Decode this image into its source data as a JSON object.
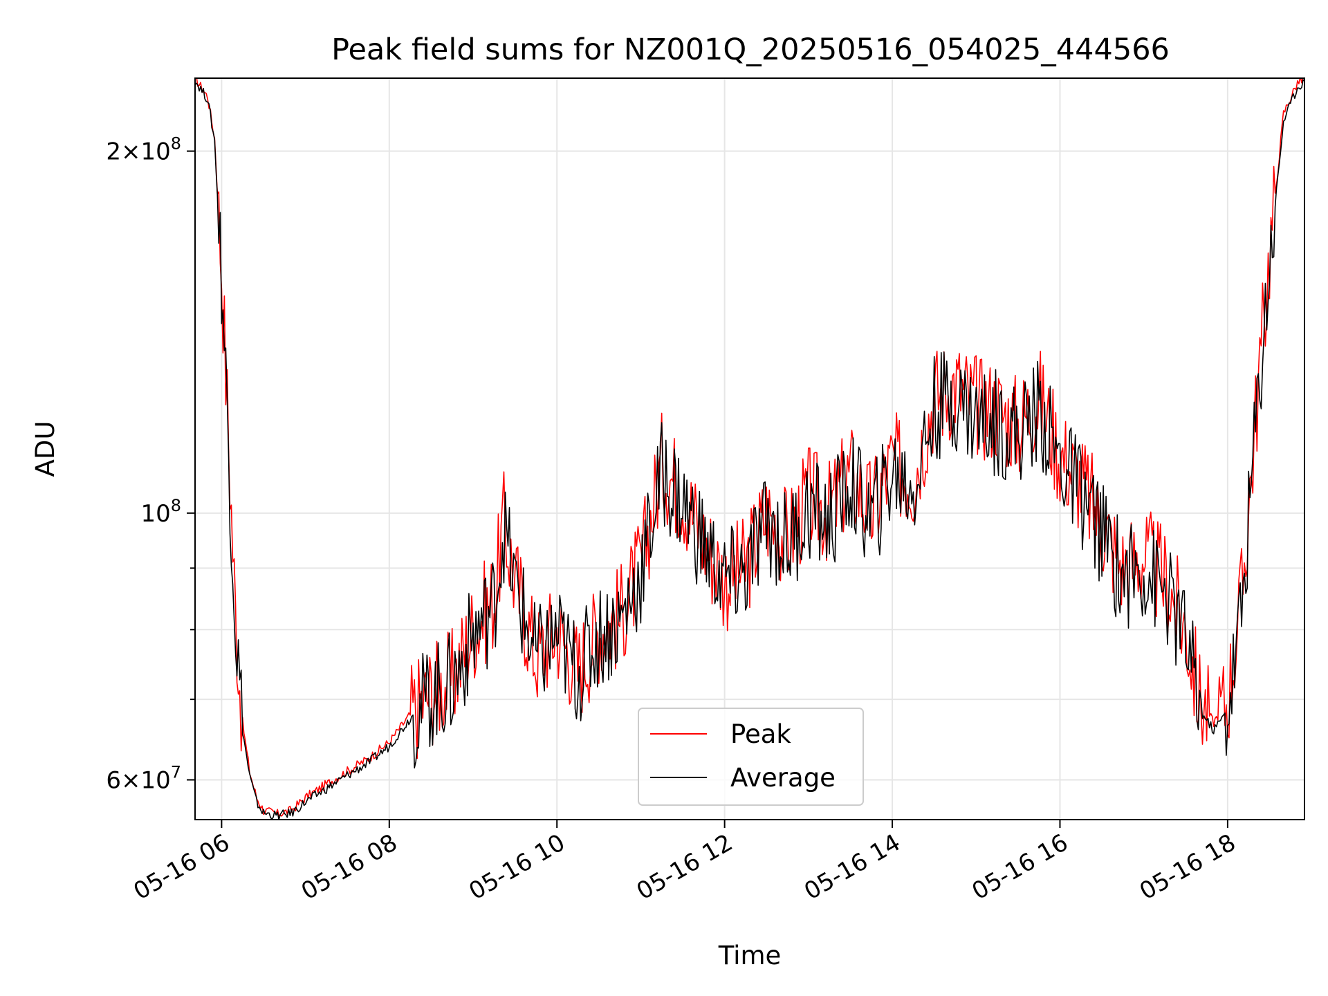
{
  "chart_data": {
    "type": "line",
    "title": "Peak field sums for NZ001Q_20250516_054025_444566",
    "xlabel": "Time",
    "ylabel": "ADU",
    "y_scale": "log",
    "ylim": [
      55600000,
      230000000
    ],
    "xlim": [
      "2025-05-16 05:41",
      "2025-05-16 18:55"
    ],
    "grid": true,
    "legend_position": "lower-center",
    "x_ticks": [
      {
        "value": "2025-05-16 06:00",
        "label": "05-16 06"
      },
      {
        "value": "2025-05-16 08:00",
        "label": "05-16 08"
      },
      {
        "value": "2025-05-16 10:00",
        "label": "05-16 10"
      },
      {
        "value": "2025-05-16 12:00",
        "label": "05-16 12"
      },
      {
        "value": "2025-05-16 14:00",
        "label": "05-16 14"
      },
      {
        "value": "2025-05-16 16:00",
        "label": "05-16 16"
      },
      {
        "value": "2025-05-16 18:00",
        "label": "05-16 18"
      }
    ],
    "y_major_ticks": [
      {
        "value": 60000000,
        "base": "6",
        "mult": "×",
        "pow_base": "10",
        "exp": "7"
      },
      {
        "value": 100000000,
        "base": "",
        "mult": "",
        "pow_base": "10",
        "exp": "8"
      },
      {
        "value": 200000000,
        "base": "2",
        "mult": "×",
        "pow_base": "10",
        "exp": "8"
      }
    ],
    "y_minor_ticks": [
      70000000,
      80000000,
      90000000
    ],
    "series": [
      {
        "name": "Peak",
        "color": "#ff0000",
        "x": [
          "2025-05-16 05:41",
          "2025-05-16 05:50",
          "2025-05-16 05:55",
          "2025-05-16 06:00",
          "2025-05-16 06:05",
          "2025-05-16 06:10",
          "2025-05-16 06:15",
          "2025-05-16 06:20",
          "2025-05-16 06:25",
          "2025-05-16 06:30",
          "2025-05-16 06:40",
          "2025-05-16 06:50",
          "2025-05-16 07:00",
          "2025-05-16 07:05",
          "2025-05-16 07:15",
          "2025-05-16 07:30",
          "2025-05-16 07:45",
          "2025-05-16 08:00",
          "2025-05-16 08:15",
          "2025-05-16 08:30",
          "2025-05-16 08:45",
          "2025-05-16 09:00",
          "2025-05-16 09:15",
          "2025-05-16 09:22",
          "2025-05-16 09:30",
          "2025-05-16 09:45",
          "2025-05-16 10:00",
          "2025-05-16 10:15",
          "2025-05-16 10:30",
          "2025-05-16 10:45",
          "2025-05-16 11:00",
          "2025-05-16 11:15",
          "2025-05-16 11:30",
          "2025-05-16 11:45",
          "2025-05-16 12:00",
          "2025-05-16 12:15",
          "2025-05-16 12:30",
          "2025-05-16 12:45",
          "2025-05-16 13:00",
          "2025-05-16 13:15",
          "2025-05-16 13:30",
          "2025-05-16 13:45",
          "2025-05-16 14:00",
          "2025-05-16 14:15",
          "2025-05-16 14:30",
          "2025-05-16 14:45",
          "2025-05-16 15:00",
          "2025-05-16 15:15",
          "2025-05-16 15:30",
          "2025-05-16 15:45",
          "2025-05-16 16:00",
          "2025-05-16 16:15",
          "2025-05-16 16:30",
          "2025-05-16 16:45",
          "2025-05-16 17:00",
          "2025-05-16 17:15",
          "2025-05-16 17:30",
          "2025-05-16 17:40",
          "2025-05-16 17:50",
          "2025-05-16 18:00",
          "2025-05-16 18:10",
          "2025-05-16 18:20",
          "2025-05-16 18:30",
          "2025-05-16 18:40",
          "2025-05-16 18:50",
          "2025-05-16 18:55"
        ],
        "y": [
          230000000,
          222000000,
          205000000,
          160000000,
          115000000,
          82000000,
          67000000,
          61000000,
          58000000,
          56600000,
          56200000,
          56600000,
          58000000,
          58500000,
          59500000,
          61000000,
          62500000,
          64500000,
          68000000,
          71000000,
          72500000,
          80000000,
          85000000,
          98000000,
          88000000,
          76000000,
          80000000,
          74000000,
          80000000,
          82000000,
          90000000,
          110000000,
          104000000,
          95000000,
          88000000,
          90000000,
          100000000,
          95000000,
          103000000,
          100000000,
          108000000,
          100000000,
          110000000,
          107000000,
          125000000,
          128000000,
          123000000,
          122000000,
          118000000,
          125000000,
          112000000,
          106000000,
          98000000,
          90000000,
          92000000,
          88000000,
          80000000,
          70000000,
          67000000,
          70000000,
          85000000,
          120000000,
          165000000,
          215000000,
          228000000,
          230000000
        ]
      },
      {
        "name": "Average",
        "color": "#000000",
        "x": [
          "2025-05-16 05:41",
          "2025-05-16 05:50",
          "2025-05-16 05:55",
          "2025-05-16 06:00",
          "2025-05-16 06:05",
          "2025-05-16 06:10",
          "2025-05-16 06:15",
          "2025-05-16 06:20",
          "2025-05-16 06:25",
          "2025-05-16 06:30",
          "2025-05-16 06:40",
          "2025-05-16 06:50",
          "2025-05-16 07:00",
          "2025-05-16 07:05",
          "2025-05-16 07:15",
          "2025-05-16 07:30",
          "2025-05-16 07:45",
          "2025-05-16 08:00",
          "2025-05-16 08:15",
          "2025-05-16 08:30",
          "2025-05-16 08:45",
          "2025-05-16 09:00",
          "2025-05-16 09:15",
          "2025-05-16 09:22",
          "2025-05-16 09:30",
          "2025-05-16 09:45",
          "2025-05-16 10:00",
          "2025-05-16 10:15",
          "2025-05-16 10:30",
          "2025-05-16 10:45",
          "2025-05-16 11:00",
          "2025-05-16 11:15",
          "2025-05-16 11:30",
          "2025-05-16 11:45",
          "2025-05-16 12:00",
          "2025-05-16 12:15",
          "2025-05-16 12:30",
          "2025-05-16 12:45",
          "2025-05-16 13:00",
          "2025-05-16 13:15",
          "2025-05-16 13:30",
          "2025-05-16 13:45",
          "2025-05-16 14:00",
          "2025-05-16 14:15",
          "2025-05-16 14:30",
          "2025-05-16 14:45",
          "2025-05-16 15:00",
          "2025-05-16 15:15",
          "2025-05-16 15:30",
          "2025-05-16 15:45",
          "2025-05-16 16:00",
          "2025-05-16 16:15",
          "2025-05-16 16:30",
          "2025-05-16 16:45",
          "2025-05-16 17:00",
          "2025-05-16 17:15",
          "2025-05-16 17:30",
          "2025-05-16 17:40",
          "2025-05-16 17:50",
          "2025-05-16 18:00",
          "2025-05-16 18:10",
          "2025-05-16 18:20",
          "2025-05-16 18:30",
          "2025-05-16 18:40",
          "2025-05-16 18:50",
          "2025-05-16 18:55"
        ],
        "y": [
          229000000,
          221000000,
          204000000,
          158000000,
          114000000,
          81000000,
          66000000,
          60500000,
          57500000,
          56300000,
          56000000,
          56300000,
          57500000,
          58000000,
          59000000,
          60500000,
          62000000,
          64000000,
          67500000,
          70500000,
          72000000,
          79000000,
          84000000,
          97000000,
          87000000,
          75500000,
          79000000,
          73500000,
          79000000,
          81000000,
          89000000,
          108000000,
          102000000,
          94000000,
          87500000,
          89000000,
          98000000,
          94000000,
          101000000,
          98000000,
          106000000,
          98500000,
          108000000,
          105000000,
          122000000,
          125000000,
          120000000,
          119000000,
          116000000,
          122000000,
          110000000,
          104000000,
          96000000,
          88500000,
          90000000,
          86000000,
          78500000,
          68500000,
          66000000,
          68500000,
          83000000,
          118000000,
          162000000,
          212000000,
          226000000,
          229000000
        ]
      }
    ]
  }
}
